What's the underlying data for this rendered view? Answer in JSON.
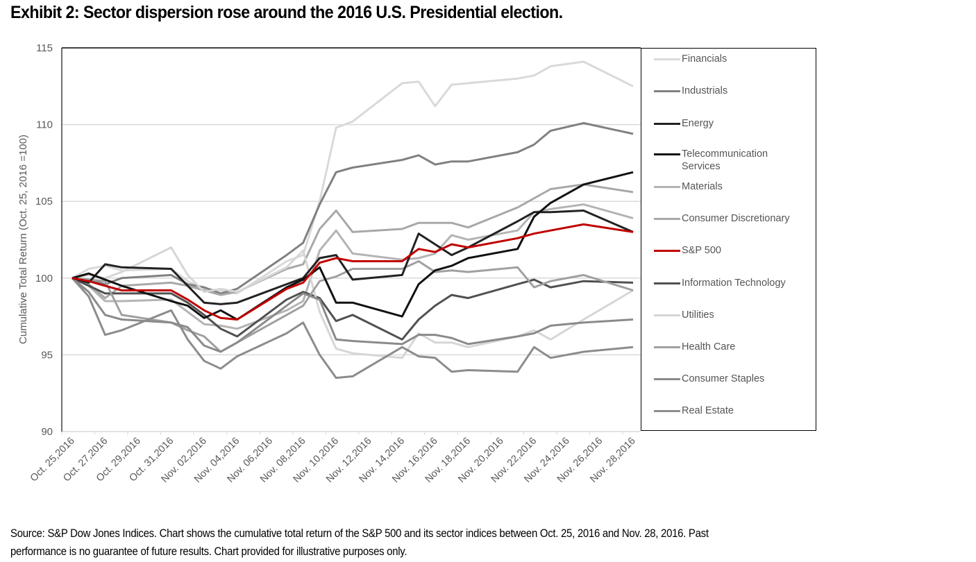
{
  "title": "Exhibit 2:  Sector dispersion rose around the 2016 U.S. Presidential election.",
  "source_lines": [
    "Source:  S&P Dow Jones Indices.  Chart shows the cumulative total return of the S&P 500 and its sector indices between Oct. 25, 2016 and Nov. 28, 2016.  Past",
    "performance is no guarantee of future results.  Chart provided for illustrative purposes only."
  ],
  "chart_data": {
    "type": "line",
    "title": "Exhibit 2:  Sector dispersion rose around the 2016 U.S. Presidential election.",
    "xlabel": "",
    "ylabel": "Cumulative Total Return (Oct. 25, 2016 =100)",
    "ylim": [
      90,
      115
    ],
    "yticks": [
      90,
      95,
      100,
      105,
      110,
      115
    ],
    "grid": true,
    "legend_position": "right",
    "x_tick_labels": [
      "Oct. 25,2016",
      "Oct. 27,2016",
      "Oct. 29,2016",
      "Oct. 31,2016",
      "Nov. 02,2016",
      "Nov. 04,2016",
      "Nov. 06,2016",
      "Nov. 08,2016",
      "Nov. 10,2016",
      "Nov. 12,2016",
      "Nov. 14,2016",
      "Nov. 16,2016",
      "Nov. 18,2016",
      "Nov. 20,2016",
      "Nov. 22,2016",
      "Nov. 24,2016",
      "Nov. 26,2016",
      "Nov. 28,2016"
    ],
    "x_days_range": [
      0,
      34
    ],
    "x": [
      "2016-10-25",
      "2016-10-26",
      "2016-10-27",
      "2016-10-28",
      "2016-10-31",
      "2016-11-01",
      "2016-11-02",
      "2016-11-03",
      "2016-11-04",
      "2016-11-07",
      "2016-11-08",
      "2016-11-09",
      "2016-11-10",
      "2016-11-11",
      "2016-11-14",
      "2016-11-15",
      "2016-11-16",
      "2016-11-17",
      "2016-11-18",
      "2016-11-21",
      "2016-11-22",
      "2016-11-23",
      "2016-11-25",
      "2016-11-28"
    ],
    "x_day_offsets": [
      0,
      1,
      2,
      3,
      6,
      7,
      8,
      9,
      10,
      13,
      14,
      15,
      16,
      17,
      20,
      21,
      22,
      23,
      24,
      27,
      28,
      29,
      31,
      34
    ],
    "series": [
      {
        "name": "Financials",
        "color": "#d9d9d9",
        "values": [
          100.0,
          100.6,
          100.8,
          100.5,
          100.6,
          99.8,
          99.3,
          99.2,
          99.0,
          101.1,
          101.5,
          105.0,
          109.8,
          110.2,
          112.7,
          112.8,
          111.2,
          112.6,
          112.7,
          113.0,
          113.2,
          113.8,
          114.1,
          112.5
        ]
      },
      {
        "name": "Industrials",
        "color": "#808080",
        "values": [
          100.0,
          99.9,
          99.6,
          100.0,
          100.2,
          99.6,
          99.4,
          99.0,
          99.3,
          101.5,
          102.3,
          104.8,
          106.9,
          107.2,
          107.7,
          108.0,
          107.4,
          107.6,
          107.6,
          108.2,
          108.7,
          109.6,
          110.1,
          109.4
        ]
      },
      {
        "name": "Energy",
        "color": "#222222",
        "values": [
          100.0,
          99.7,
          100.9,
          100.7,
          100.6,
          99.5,
          98.4,
          98.3,
          98.4,
          99.6,
          100.0,
          101.3,
          101.5,
          99.9,
          100.2,
          102.9,
          102.2,
          101.5,
          102.0,
          103.7,
          104.3,
          104.3,
          104.4,
          103.0
        ]
      },
      {
        "name": "Telecommunication Services",
        "color": "#111111",
        "values": [
          100.0,
          100.3,
          99.9,
          99.5,
          98.5,
          98.2,
          97.4,
          97.9,
          97.3,
          99.4,
          99.9,
          100.7,
          98.4,
          98.4,
          97.5,
          99.6,
          100.5,
          100.8,
          101.3,
          101.9,
          104.0,
          104.9,
          106.1,
          106.9
        ]
      },
      {
        "name": "Materials",
        "color": "#b4b4b4",
        "values": [
          100.0,
          99.5,
          98.5,
          98.5,
          98.6,
          97.8,
          97.0,
          96.9,
          96.7,
          97.9,
          98.5,
          101.8,
          103.1,
          101.6,
          101.2,
          101.3,
          101.6,
          102.8,
          102.5,
          103.1,
          104.3,
          104.5,
          104.8,
          103.9
        ]
      },
      {
        "name": "Consumer Discretionary",
        "color": "#a8a8a8",
        "values": [
          100.0,
          99.6,
          98.7,
          99.5,
          99.7,
          99.5,
          99.2,
          98.9,
          99.1,
          100.6,
          100.9,
          103.2,
          104.4,
          103.0,
          103.2,
          103.6,
          103.6,
          103.6,
          103.3,
          104.6,
          105.2,
          105.8,
          106.1,
          105.6
        ]
      },
      {
        "name": "S&P 500",
        "color": "#c00000",
        "values": [
          100.0,
          99.8,
          99.5,
          99.2,
          99.2,
          98.6,
          97.9,
          97.4,
          97.3,
          99.3,
          99.7,
          101.0,
          101.3,
          101.1,
          101.1,
          101.9,
          101.7,
          102.2,
          102.0,
          102.6,
          102.9,
          103.1,
          103.5,
          103.0
        ]
      },
      {
        "name": "Information Technology",
        "color": "#505050",
        "values": [
          100.0,
          99.5,
          99.0,
          99.0,
          99.0,
          98.4,
          97.6,
          96.7,
          96.2,
          98.6,
          99.1,
          98.7,
          97.2,
          97.6,
          96.0,
          97.3,
          98.2,
          98.9,
          98.7,
          99.6,
          99.9,
          99.4,
          99.8,
          99.7
        ]
      },
      {
        "name": "Utilities",
        "color": "#d6d6d6",
        "values": [
          100.0,
          100.2,
          100.0,
          100.4,
          102.0,
          100.2,
          99.1,
          99.3,
          99.1,
          100.7,
          101.8,
          97.8,
          95.4,
          95.1,
          94.8,
          96.4,
          95.8,
          95.8,
          95.5,
          96.2,
          96.6,
          96.0,
          97.3,
          99.2
        ]
      },
      {
        "name": "Health Care",
        "color": "#a0a0a0",
        "values": [
          100.0,
          99.9,
          99.8,
          97.6,
          97.1,
          96.6,
          96.2,
          95.2,
          95.8,
          97.6,
          98.2,
          99.8,
          100.1,
          100.6,
          100.6,
          101.1,
          100.4,
          100.5,
          100.4,
          100.7,
          99.4,
          99.8,
          100.2,
          99.2
        ]
      },
      {
        "name": "Consumer Staples",
        "color": "#8a8a8a",
        "values": [
          100.0,
          99.1,
          97.6,
          97.3,
          97.1,
          96.8,
          95.6,
          95.2,
          95.8,
          98.2,
          99.0,
          98.6,
          96.0,
          95.9,
          95.7,
          96.3,
          96.3,
          96.1,
          95.7,
          96.2,
          96.4,
          96.9,
          97.1,
          97.3
        ]
      },
      {
        "name": "Real Estate",
        "color": "#8c8c8c",
        "values": [
          100.0,
          98.8,
          96.3,
          96.6,
          97.9,
          96.0,
          94.6,
          94.1,
          94.9,
          96.4,
          97.1,
          95.0,
          93.5,
          93.6,
          95.5,
          94.9,
          94.8,
          93.9,
          94.0,
          93.9,
          95.5,
          94.8,
          95.2,
          95.5
        ]
      }
    ]
  }
}
